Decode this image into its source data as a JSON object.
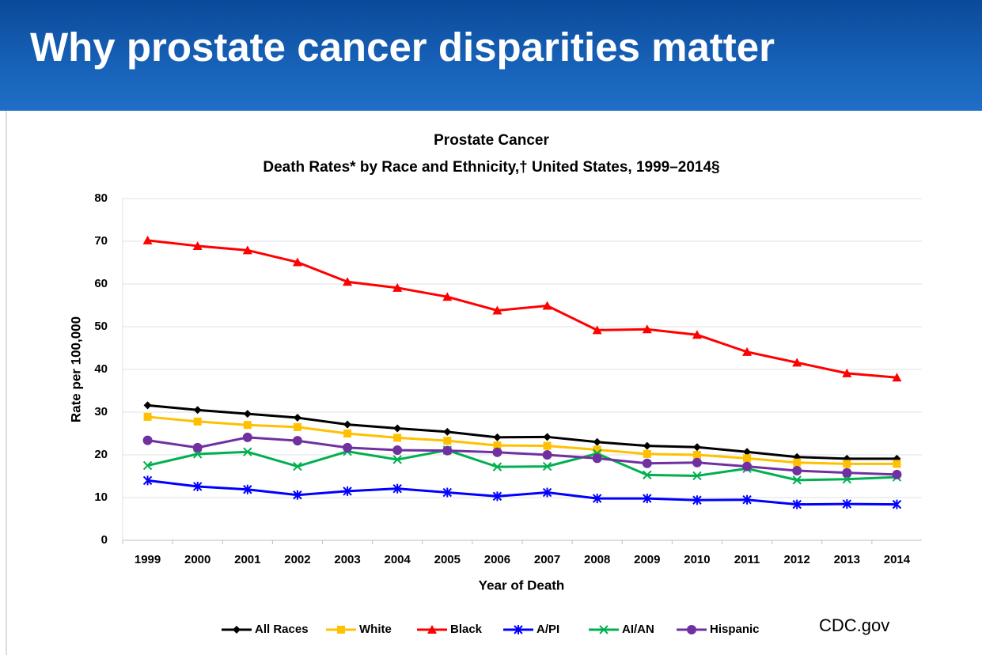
{
  "header": {
    "title": "Why prostate cancer disparities matter"
  },
  "source": "CDC.gov",
  "chart_data": {
    "type": "line",
    "title": "Prostate Cancer",
    "subtitle": "Death Rates* by Race and Ethnicity,† United States, 1999–2014§",
    "x_label": "Year of Death",
    "y_label": "Rate per 100,000",
    "categories": [
      "1999",
      "2000",
      "2001",
      "2002",
      "2003",
      "2004",
      "2005",
      "2006",
      "2007",
      "2008",
      "2009",
      "2010",
      "2011",
      "2012",
      "2013",
      "2014"
    ],
    "ylim": [
      0,
      80
    ],
    "yticks": [
      0,
      10,
      20,
      30,
      40,
      50,
      60,
      70,
      80
    ],
    "grid": true,
    "legend": "bottom",
    "series": [
      {
        "name": "All Races",
        "color": "#000000",
        "marker": "diamond",
        "values": [
          31.6,
          30.5,
          29.6,
          28.7,
          27.1,
          26.2,
          25.4,
          24.1,
          24.2,
          23.0,
          22.1,
          21.8,
          20.7,
          19.5,
          19.1,
          19.1
        ]
      },
      {
        "name": "White",
        "color": "#ffc000",
        "marker": "square",
        "values": [
          28.9,
          27.8,
          27.0,
          26.5,
          25.0,
          24.0,
          23.3,
          22.2,
          22.1,
          21.2,
          20.2,
          20.0,
          19.2,
          18.2,
          17.9,
          17.9
        ]
      },
      {
        "name": "Black",
        "color": "#ff0000",
        "marker": "triangle",
        "values": [
          70.2,
          68.9,
          67.9,
          65.1,
          60.5,
          59.1,
          57.0,
          53.8,
          54.9,
          49.2,
          49.4,
          48.1,
          44.1,
          41.6,
          39.1,
          38.1
        ]
      },
      {
        "name": "A/PI",
        "color": "#0000ff",
        "marker": "asterisk",
        "values": [
          14.0,
          12.6,
          11.9,
          10.6,
          11.5,
          12.1,
          11.2,
          10.3,
          11.2,
          9.8,
          9.8,
          9.4,
          9.5,
          8.4,
          8.5,
          8.4
        ]
      },
      {
        "name": "AI/AN",
        "color": "#00b050",
        "marker": "cross",
        "values": [
          17.5,
          20.2,
          20.7,
          17.3,
          20.8,
          18.9,
          21.1,
          17.2,
          17.3,
          20.3,
          15.3,
          15.1,
          16.8,
          14.1,
          14.3,
          14.8
        ]
      },
      {
        "name": "Hispanic",
        "color": "#7030a0",
        "marker": "circle",
        "values": [
          23.4,
          21.7,
          24.1,
          23.3,
          21.7,
          21.1,
          21.0,
          20.6,
          20.0,
          19.2,
          18.0,
          18.2,
          17.3,
          16.3,
          15.8,
          15.4
        ]
      }
    ]
  }
}
